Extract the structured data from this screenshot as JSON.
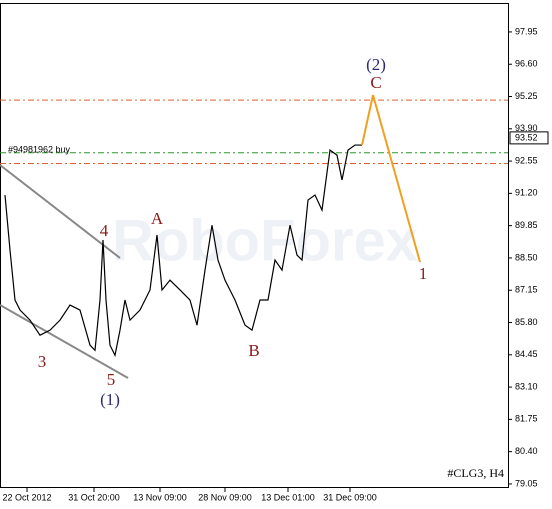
{
  "chart_data": {
    "type": "line",
    "instrument": "#CLG3, H4",
    "watermark": "RoboForex",
    "order_label": "#94981962 buy",
    "current_price": 93.52,
    "annotations": [
      "(2)",
      "C",
      "1",
      "A",
      "B",
      "4",
      "3",
      "5",
      "(1)"
    ],
    "xlim": [
      0,
      254
    ],
    "xticks": [
      {
        "value": 13.5,
        "label": "22 Oct 2012"
      },
      {
        "value": 47,
        "label": "31 Oct 20:00"
      },
      {
        "value": 80,
        "label": "13 Nov 09:00"
      },
      {
        "value": 112.5,
        "label": "28 Nov 09:00"
      },
      {
        "value": 144,
        "label": "13 Dec 01:00"
      },
      {
        "value": 175,
        "label": "31 Dec 09:00"
      }
    ],
    "ylim": [
      78.88,
      99.16
    ],
    "yticks": [
      {
        "value": 97.95,
        "label": "97.95"
      },
      {
        "value": 96.6,
        "label": "96.60"
      },
      {
        "value": 95.25,
        "label": "95.25"
      },
      {
        "value": 93.9,
        "label": "93.90"
      },
      {
        "value": 92.55,
        "label": "92.55"
      },
      {
        "value": 91.2,
        "label": "91.20"
      },
      {
        "value": 89.85,
        "label": "89.85"
      },
      {
        "value": 88.5,
        "label": "88.50"
      },
      {
        "value": 87.15,
        "label": "87.15"
      },
      {
        "value": 85.8,
        "label": "85.80"
      },
      {
        "value": 84.45,
        "label": "84.45"
      },
      {
        "value": 83.1,
        "label": "83.10"
      },
      {
        "value": 81.75,
        "label": "81.75"
      },
      {
        "value": 80.4,
        "label": "80.40"
      },
      {
        "value": 79.05,
        "label": "79.05"
      }
    ],
    "levels": [
      {
        "value": 95.1,
        "color": "#e06030"
      },
      {
        "value": 92.9,
        "color": "#2a9a2a"
      },
      {
        "value": 92.45,
        "color": "#e06030"
      }
    ],
    "series": [
      {
        "color": "#000000",
        "x": [
          2.5,
          5,
          7.5,
          10,
          15,
          20,
          25,
          30,
          35,
          40,
          45,
          47.5,
          50,
          51.5,
          53,
          55,
          57.5,
          60,
          62.5,
          65,
          70,
          75,
          78.5,
          81,
          85,
          90,
          95,
          98.5,
          102.5,
          106,
          109,
          112.5,
          117.5,
          122.5,
          126,
          130,
          134,
          137.5,
          141,
          145,
          148.5,
          151,
          154,
          157.5,
          161,
          165,
          168.5,
          171,
          174,
          177.5,
          181
        ],
        "values": [
          91.13,
          88.83,
          86.74,
          86.32,
          85.9,
          85.27,
          85.48,
          85.9,
          86.53,
          86.32,
          84.85,
          84.64,
          86.74,
          89.25,
          86.74,
          84.85,
          84.43,
          85.48,
          86.74,
          85.9,
          86.32,
          87.16,
          89.46,
          87.16,
          87.57,
          87.16,
          86.74,
          85.69,
          87.99,
          89.87,
          88.41,
          87.57,
          86.74,
          85.69,
          85.48,
          86.74,
          86.74,
          88.41,
          87.99,
          89.87,
          88.62,
          88.41,
          90.92,
          91.13,
          90.5,
          93.01,
          92.8,
          91.76,
          93.01,
          93.22,
          93.22
        ]
      },
      {
        "color": "#f0a020",
        "x": [
          181,
          186.5,
          210
        ],
        "values": [
          93.22,
          95.31,
          88.33
        ]
      }
    ]
  }
}
